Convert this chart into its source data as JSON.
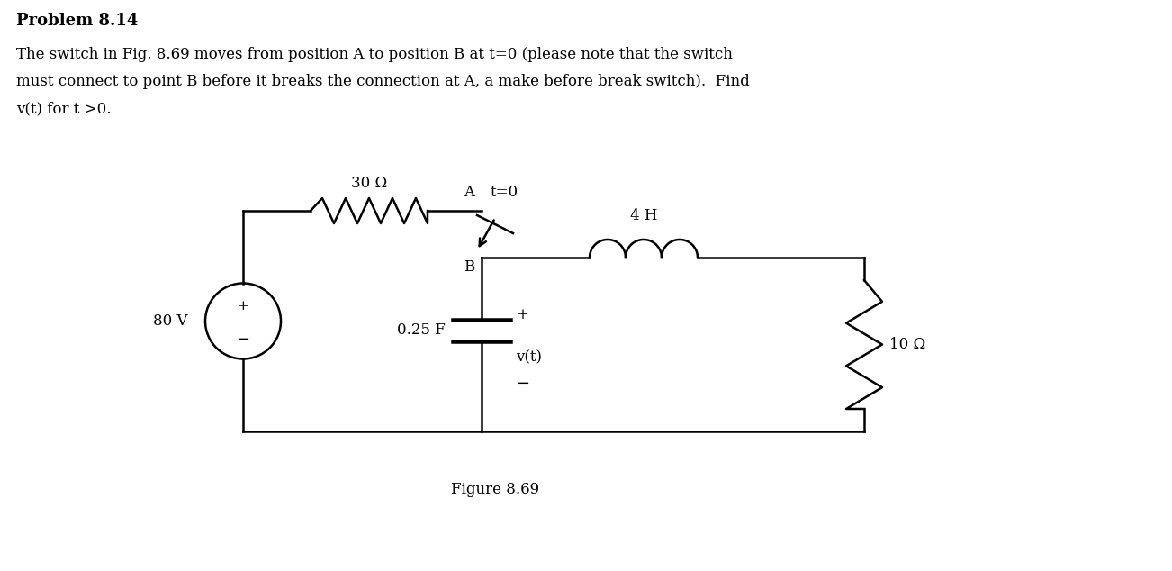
{
  "title": "Problem 8.14",
  "line1": "The switch in Fig. 8.69 moves from position A to position B at t=0 (please note that the switch",
  "line2": "must connect to point B before it breaks the connection at A, a make before break switch).  Find",
  "line3": "v(t) for t >0.",
  "figure_caption": "Figure 8.69",
  "bg_color": "#ffffff",
  "text_color": "#000000",
  "circuit_color": "#000000",
  "resistor_30": "30 Ω",
  "inductor_4": "4 H",
  "capacitor_025": "0.25 F",
  "resistor_10": "10 Ω",
  "voltage_source": "80 V",
  "switch_label_A": "A",
  "switch_label_B": "B",
  "switch_time": "t=0"
}
